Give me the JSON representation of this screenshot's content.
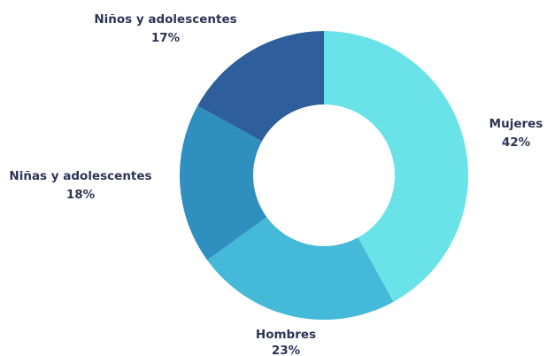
{
  "chart_data": {
    "type": "pie",
    "donut": true,
    "slices": [
      {
        "name": "Mujeres",
        "label": "42%",
        "value": 42,
        "color": "#6ae3e8"
      },
      {
        "name": "Hombres",
        "label": "23%",
        "value": 23,
        "color": "#44b9d8"
      },
      {
        "name": "Niñas y adolescentes",
        "label": "18%",
        "value": 18,
        "color": "#2f8fbf"
      },
      {
        "name": "Niños y adolescentes",
        "label": "17%",
        "value": 17,
        "color": "#2e5e9b"
      }
    ],
    "legend": "none"
  }
}
